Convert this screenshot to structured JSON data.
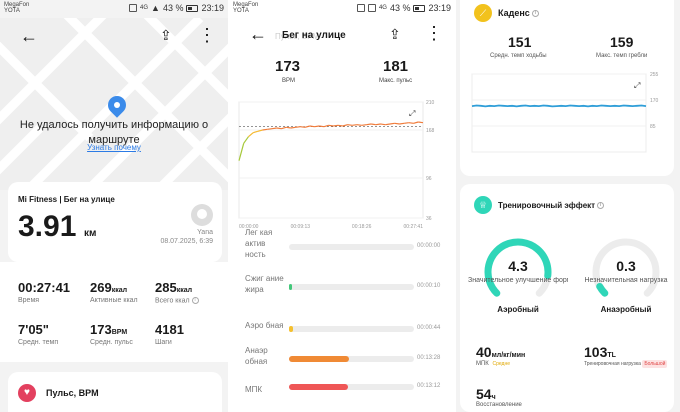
{
  "panel1": {
    "status": {
      "carrier": "MegaFon",
      "carrier2": "YOTA",
      "signal": "4G",
      "battery": "43 %",
      "time": "23:19"
    },
    "map": {
      "error": "Не удалось получить информацию о маршруте",
      "link": "Узнать почему"
    },
    "workout": {
      "title": "Mi Fitness | Бег на улице",
      "distance": "3.91",
      "distance_unit": "км",
      "user": "Yana",
      "date": "08.07.2025, 6:39"
    },
    "stats": [
      {
        "value": "00:27:41",
        "unit": "",
        "label": "Время"
      },
      {
        "value": "269",
        "unit": "ккал",
        "label": "Активные ккал"
      },
      {
        "value": "285",
        "unit": "ккал",
        "label": "Всего ккал"
      },
      {
        "value": "7'05\"",
        "unit": "",
        "label": "Средн. темп"
      },
      {
        "value": "173",
        "unit": "BPM",
        "label": "Средн. пульс"
      },
      {
        "value": "4181",
        "unit": "",
        "label": "Шаги"
      }
    ],
    "pulse_section": "Пульс, BPM"
  },
  "panel2": {
    "status": {
      "carrier": "MegaFon",
      "carrier2": "YOTA",
      "signal": "4G",
      "battery": "43 %",
      "time": "23:19"
    },
    "title": "Бег на улице",
    "ghost_title": "Пульс, BPM",
    "avg": {
      "value": "173",
      "label": "BPM"
    },
    "max": {
      "value": "181",
      "label": "Макс. пульс"
    },
    "chart_data": {
      "type": "line",
      "x_ticks": [
        "00:00:00",
        "00:09:13",
        "00:18:26",
        "00:27:41"
      ],
      "y_ticks": [
        "210",
        "168",
        "96",
        "36"
      ],
      "ylim": [
        36,
        210
      ],
      "avg_line": 173,
      "series": [
        {
          "values": [
            122,
            148,
            158,
            164,
            166,
            168,
            169,
            170,
            171,
            170,
            172,
            171,
            172,
            173,
            172,
            174,
            173,
            174,
            173,
            175,
            174,
            175,
            174,
            176,
            175,
            176,
            175,
            176,
            177,
            176,
            177,
            176,
            177,
            178,
            177,
            178,
            179,
            178,
            180,
            179
          ]
        }
      ]
    },
    "zones": [
      {
        "label": "Лег кая актив ность",
        "fraction": 0.0,
        "color": "#c8c8c8",
        "time": "00:00:00"
      },
      {
        "label": "Сжиг ание жира",
        "fraction": 0.01,
        "color": "#43c77a",
        "time": "00:00:10"
      },
      {
        "label": "Аэро бная",
        "fraction": 0.03,
        "color": "#f5c02e",
        "time": "00:00:44"
      },
      {
        "label": "Анаэр обная",
        "fraction": 0.48,
        "color": "#f08a35",
        "time": "00:13:28"
      },
      {
        "label": "МПК",
        "fraction": 0.47,
        "color": "#ef5656",
        "time": "00:13:12"
      }
    ]
  },
  "panel3": {
    "cadence": {
      "title": "Каденс",
      "avg": {
        "value": "151",
        "label": "Средн. темп ходьбы"
      },
      "max": {
        "value": "159",
        "label": "Макс. темп гребли"
      },
      "y_ticks": [
        "255",
        "170",
        "85"
      ]
    },
    "chart_data": {
      "type": "line",
      "ylim": [
        0,
        255
      ],
      "series": [
        {
          "values": [
            150,
            152,
            151,
            149,
            151,
            150,
            152,
            151,
            150,
            151,
            149,
            151,
            152,
            150,
            151,
            150,
            152,
            151,
            149,
            150,
            151,
            150,
            152,
            151,
            150,
            151,
            149,
            151,
            150,
            152,
            151,
            150,
            151,
            150,
            152,
            151,
            150,
            151,
            152,
            150
          ]
        }
      ]
    },
    "training": {
      "title": "Тренировочный эффект",
      "aerobic": {
        "value": "4.3",
        "desc": "Значительное улучшение формы",
        "name": "Аэробный",
        "fraction": 0.86
      },
      "anaerobic": {
        "value": "0.3",
        "desc": "Незначительная нагрузка",
        "name": "Анаэробный",
        "fraction": 0.06
      },
      "vo2": {
        "value": "40",
        "unit": "мл/кг/мин",
        "label": "МПК",
        "badge": "Средне"
      },
      "load": {
        "value": "103",
        "unit": "TL",
        "label": "Тренировочная нагрузка",
        "badge": "Большой"
      },
      "recovery": {
        "value": "54",
        "unit": "ч",
        "label": "Восстановление"
      }
    },
    "colors": {
      "teal": "#2fd6b8",
      "cadence_line": "#2f9ed8",
      "hr_line": "#f08a35"
    }
  }
}
